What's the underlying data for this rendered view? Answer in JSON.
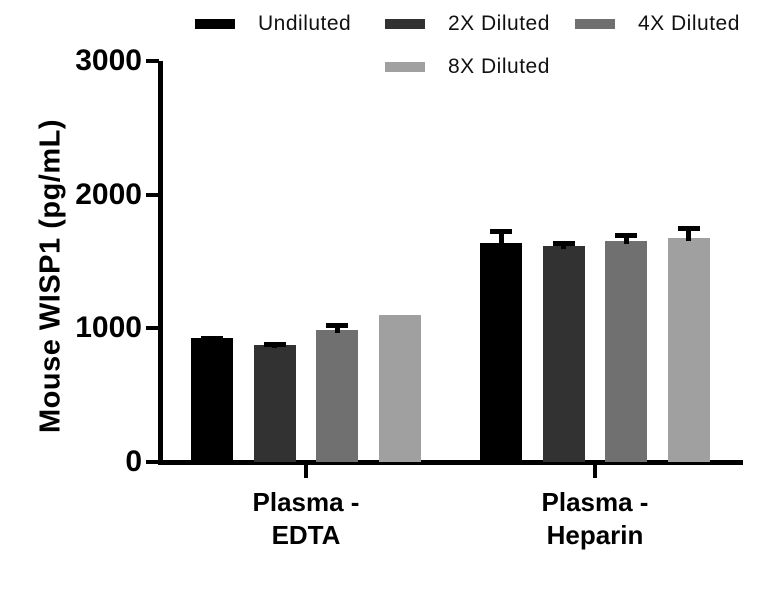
{
  "figure": {
    "background": "#ffffff"
  },
  "chart_data": {
    "type": "bar",
    "title": "",
    "ylabel": "Mouse WISP1 (pg/mL)",
    "xlabel": "",
    "ylim": [
      0,
      3000
    ],
    "yticks": [
      0,
      1000,
      2000,
      3000
    ],
    "grid": false,
    "legend_position": "top",
    "error_bars": "upper SD only, black line and cap",
    "categories": [
      {
        "line1": "Plasma -",
        "line2": "EDTA"
      },
      {
        "line1": "Plasma -",
        "line2": "Heparin"
      }
    ],
    "series": [
      {
        "name": "Undiluted",
        "color": "#000000",
        "values": [
          925,
          1640
        ],
        "sd_upper": [
          15,
          105
        ]
      },
      {
        "name": "2X Diluted",
        "color": "#323232",
        "values": [
          875,
          1615
        ],
        "sd_upper": [
          20,
          40
        ]
      },
      {
        "name": "4X Diluted",
        "color": "#707070",
        "values": [
          990,
          1650
        ],
        "sd_upper": [
          50,
          60
        ]
      },
      {
        "name": "8X Diluted",
        "color": "#a0a0a0",
        "values": [
          1100,
          1675
        ],
        "sd_upper": [
          0,
          90
        ]
      }
    ]
  }
}
